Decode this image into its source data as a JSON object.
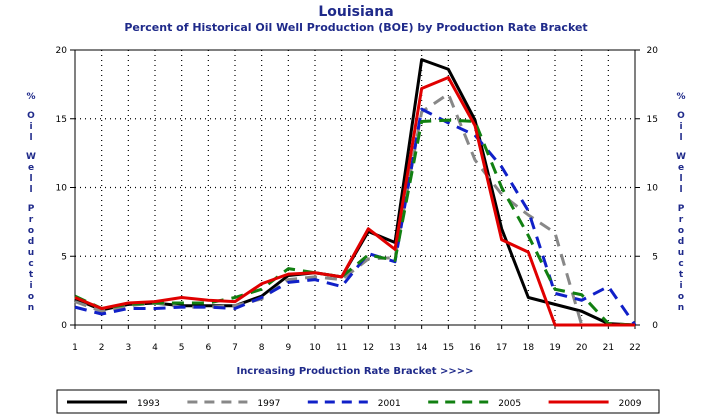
{
  "chart_data": {
    "type": "line",
    "title": "Louisiana",
    "subtitle": "Percent of Historical Oil Well Production (BOE) by Production Rate Bracket",
    "xlabel": "Increasing Production Rate Bracket >>>>",
    "ylabel_left": "% Oil Well Production",
    "ylabel_right": "% Oil Well Production",
    "x": [
      1,
      2,
      3,
      4,
      5,
      6,
      7,
      8,
      9,
      10,
      11,
      12,
      13,
      14,
      15,
      16,
      17,
      18,
      19,
      20,
      21,
      22
    ],
    "ylim": [
      0,
      20
    ],
    "yticks": [
      0,
      5,
      10,
      15,
      20
    ],
    "grid": true,
    "legend_position": "bottom",
    "series": [
      {
        "name": "1993",
        "color": "#000000",
        "dash": "solid",
        "values": [
          1.9,
          1.1,
          1.5,
          1.6,
          1.4,
          1.4,
          1.4,
          2.1,
          3.6,
          3.8,
          3.5,
          6.8,
          6.0,
          19.3,
          18.6,
          14.9,
          7.0,
          2.0,
          1.5,
          1.0,
          0.1,
          0.0
        ]
      },
      {
        "name": "1997",
        "color": "#888888",
        "dash": "dashed",
        "values": [
          1.7,
          1.0,
          1.4,
          1.6,
          1.3,
          1.3,
          1.4,
          1.9,
          3.3,
          3.5,
          3.3,
          4.8,
          4.9,
          15.5,
          16.8,
          12.0,
          9.5,
          8.0,
          6.7,
          0.0,
          0.0,
          0.0
        ]
      },
      {
        "name": "2001",
        "color": "#1020c8",
        "dash": "dashed",
        "values": [
          1.3,
          0.8,
          1.2,
          1.2,
          1.3,
          1.3,
          1.2,
          2.0,
          3.1,
          3.3,
          2.8,
          5.2,
          4.6,
          15.7,
          14.7,
          13.8,
          11.5,
          8.3,
          2.3,
          1.8,
          2.8,
          0.0
        ]
      },
      {
        "name": "2005",
        "color": "#118011",
        "dash": "dashed",
        "values": [
          2.1,
          1.2,
          1.5,
          1.6,
          1.6,
          1.6,
          2.0,
          2.6,
          4.1,
          3.8,
          3.5,
          5.1,
          4.7,
          14.8,
          14.9,
          14.8,
          10.0,
          6.5,
          2.6,
          2.2,
          0.1,
          0.0
        ]
      },
      {
        "name": "2009",
        "color": "#e00000",
        "dash": "solid",
        "values": [
          2.0,
          1.2,
          1.6,
          1.7,
          2.0,
          1.8,
          1.7,
          3.0,
          3.7,
          3.8,
          3.5,
          7.0,
          5.5,
          17.2,
          18.0,
          14.5,
          6.2,
          5.3,
          0.0,
          0.0,
          0.0,
          0.0
        ]
      }
    ]
  }
}
